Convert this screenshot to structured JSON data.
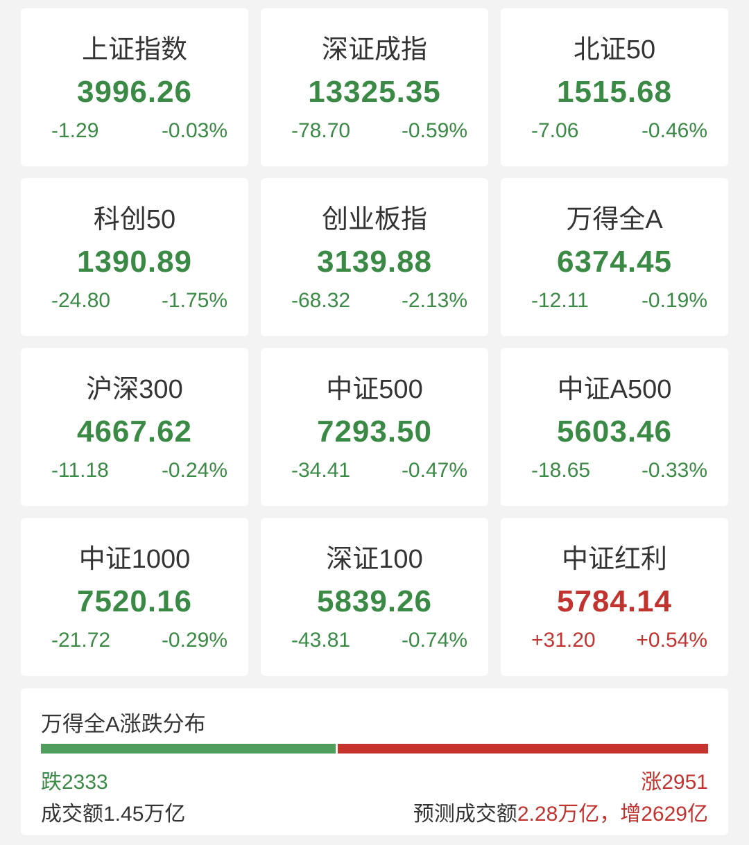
{
  "colors": {
    "down": "#3a8a45",
    "up": "#c1332f"
  },
  "indices": [
    {
      "name": "上证指数",
      "price": "3996.26",
      "change": "-1.29",
      "pct": "-0.03%",
      "dir": "down"
    },
    {
      "name": "深证成指",
      "price": "13325.35",
      "change": "-78.70",
      "pct": "-0.59%",
      "dir": "down"
    },
    {
      "name": "北证50",
      "price": "1515.68",
      "change": "-7.06",
      "pct": "-0.46%",
      "dir": "down"
    },
    {
      "name": "科创50",
      "price": "1390.89",
      "change": "-24.80",
      "pct": "-1.75%",
      "dir": "down"
    },
    {
      "name": "创业板指",
      "price": "3139.88",
      "change": "-68.32",
      "pct": "-2.13%",
      "dir": "down"
    },
    {
      "name": "万得全A",
      "price": "6374.45",
      "change": "-12.11",
      "pct": "-0.19%",
      "dir": "down"
    },
    {
      "name": "沪深300",
      "price": "4667.62",
      "change": "-11.18",
      "pct": "-0.24%",
      "dir": "down"
    },
    {
      "name": "中证500",
      "price": "7293.50",
      "change": "-34.41",
      "pct": "-0.47%",
      "dir": "down"
    },
    {
      "name": "中证A500",
      "price": "5603.46",
      "change": "-18.65",
      "pct": "-0.33%",
      "dir": "down"
    },
    {
      "name": "中证1000",
      "price": "7520.16",
      "change": "-21.72",
      "pct": "-0.29%",
      "dir": "down"
    },
    {
      "name": "深证100",
      "price": "5839.26",
      "change": "-43.81",
      "pct": "-0.74%",
      "dir": "down"
    },
    {
      "name": "中证红利",
      "price": "5784.14",
      "change": "+31.20",
      "pct": "+0.54%",
      "dir": "up"
    }
  ],
  "distribution": {
    "title": "万得全A涨跌分布",
    "fall_count": 2333,
    "rise_count": 2951,
    "fall_label": "跌2333",
    "rise_label": "涨2951",
    "volume_label": "成交额1.45万亿",
    "forecast_prefix": "预测成交额",
    "forecast_value": "2.28万亿，增2629亿"
  }
}
